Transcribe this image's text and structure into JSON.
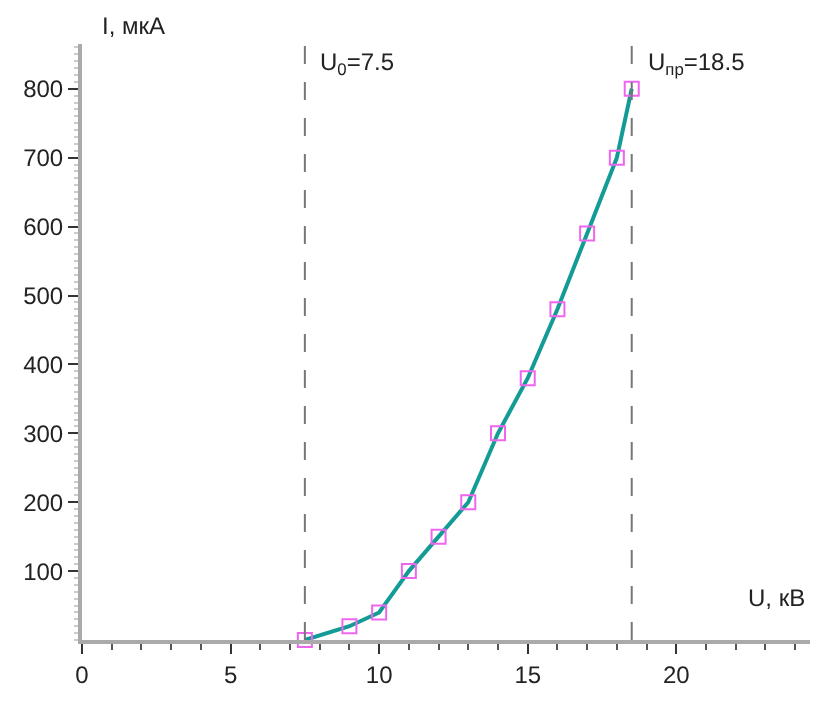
{
  "chart_data": {
    "type": "line",
    "xlabel": "U, кВ",
    "ylabel": "I, мкА",
    "x": [
      7.5,
      9,
      10,
      11,
      12,
      13,
      14,
      15,
      16,
      17,
      18,
      18.5
    ],
    "series": [
      {
        "color": "#139b96",
        "colors": [
          "#ee66ee",
          "#ee66ee",
          "#ee66ee",
          "#ee66ee",
          "#ee66ee",
          "#ee66ee",
          "#ee66ee",
          "#ee66ee",
          "#ee66ee",
          "#ee66ee",
          "#ee66ee",
          "#ee66ee"
        ],
        "values": [
          0,
          20,
          40,
          100,
          150,
          200,
          300,
          380,
          480,
          590,
          700,
          800
        ]
      }
    ],
    "xlim": [
      0,
      24.5
    ],
    "xticks": [
      0,
      5,
      10,
      15,
      20
    ],
    "ylim": [
      0,
      865
    ],
    "yticks": [
      100,
      200,
      300,
      400,
      500,
      600,
      700,
      800
    ],
    "ref_lines": [
      {
        "axis": "x",
        "value": 7.5,
        "label": "U$_{0}$=7.5",
        "color": "#777777",
        "line_style": "dashed"
      },
      {
        "axis": "x",
        "value": 18.5,
        "label": "U$_{пр}$=18.5",
        "color": "#777777",
        "line_style": "dashed"
      }
    ],
    "marker": "square",
    "line_style": "solid",
    "grid": false,
    "legend": false
  }
}
